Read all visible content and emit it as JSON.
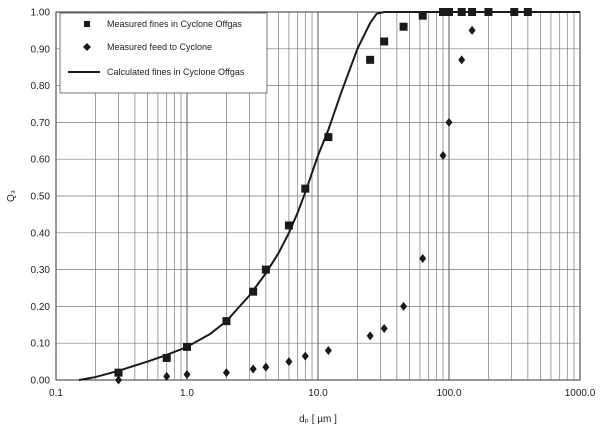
{
  "chart_data": {
    "type": "scatter",
    "x_scale": "log",
    "xlabel": "dₚ [ µm ]",
    "ylabel": "Q₃",
    "xlim": [
      0.1,
      1000
    ],
    "ylim": [
      0,
      1
    ],
    "grid": true,
    "legend_position": "top-left",
    "x_tick_labels": [
      "0.1",
      "1.0",
      "10.0",
      "100.0",
      "1000.0"
    ],
    "x_tick_values": [
      0.1,
      1,
      10,
      100,
      1000
    ],
    "y_tick_labels": [
      "0.00",
      "0.10",
      "0.20",
      "0.30",
      "0.40",
      "0.50",
      "0.60",
      "0.70",
      "0.80",
      "0.90",
      "1.00"
    ],
    "y_tick_values": [
      0,
      0.1,
      0.2,
      0.3,
      0.4,
      0.5,
      0.6,
      0.7,
      0.8,
      0.9,
      1.0
    ],
    "series": [
      {
        "name": "Measured fines in Cyclone Offgas",
        "marker": "square",
        "color": "#1a1a1a",
        "points": [
          [
            0.3,
            0.02
          ],
          [
            0.7,
            0.06
          ],
          [
            1.0,
            0.09
          ],
          [
            2.0,
            0.16
          ],
          [
            3.2,
            0.24
          ],
          [
            4.0,
            0.3
          ],
          [
            6.0,
            0.42
          ],
          [
            8.0,
            0.52
          ],
          [
            12.0,
            0.66
          ],
          [
            25.0,
            0.87
          ],
          [
            32.0,
            0.92
          ],
          [
            45.0,
            0.96
          ],
          [
            63.0,
            0.99
          ],
          [
            90.0,
            1.0
          ],
          [
            100.0,
            1.0
          ],
          [
            125.0,
            1.0
          ],
          [
            150.0,
            1.0
          ],
          [
            200.0,
            1.0
          ],
          [
            315.0,
            1.0
          ],
          [
            400.0,
            1.0
          ]
        ]
      },
      {
        "name": "Measured feed to Cyclone",
        "marker": "diamond",
        "color": "#1a1a1a",
        "points": [
          [
            0.3,
            0.0
          ],
          [
            0.7,
            0.01
          ],
          [
            1.0,
            0.015
          ],
          [
            2.0,
            0.02
          ],
          [
            3.2,
            0.03
          ],
          [
            4.0,
            0.035
          ],
          [
            6.0,
            0.05
          ],
          [
            8.0,
            0.065
          ],
          [
            12.0,
            0.08
          ],
          [
            25.0,
            0.12
          ],
          [
            32.0,
            0.14
          ],
          [
            45.0,
            0.2
          ],
          [
            63.0,
            0.33
          ],
          [
            90.0,
            0.61
          ],
          [
            100.0,
            0.7
          ],
          [
            125.0,
            0.87
          ],
          [
            150.0,
            0.95
          ]
        ]
      },
      {
        "name": "Calculated fines in Cyclone Offgas",
        "marker": "line",
        "color": "#1a1a1a",
        "points": [
          [
            0.15,
            0.0
          ],
          [
            0.2,
            0.008
          ],
          [
            0.3,
            0.025
          ],
          [
            0.5,
            0.05
          ],
          [
            0.7,
            0.068
          ],
          [
            1.0,
            0.09
          ],
          [
            1.5,
            0.125
          ],
          [
            2.0,
            0.16
          ],
          [
            3.0,
            0.23
          ],
          [
            4.0,
            0.29
          ],
          [
            5.0,
            0.345
          ],
          [
            6.0,
            0.4
          ],
          [
            7.0,
            0.455
          ],
          [
            8.0,
            0.51
          ],
          [
            10.0,
            0.61
          ],
          [
            12.0,
            0.68
          ],
          [
            15.0,
            0.78
          ],
          [
            20.0,
            0.9
          ],
          [
            25.0,
            0.97
          ],
          [
            28.0,
            0.995
          ],
          [
            32.0,
            1.0
          ],
          [
            1000,
            1.0
          ]
        ]
      }
    ]
  }
}
